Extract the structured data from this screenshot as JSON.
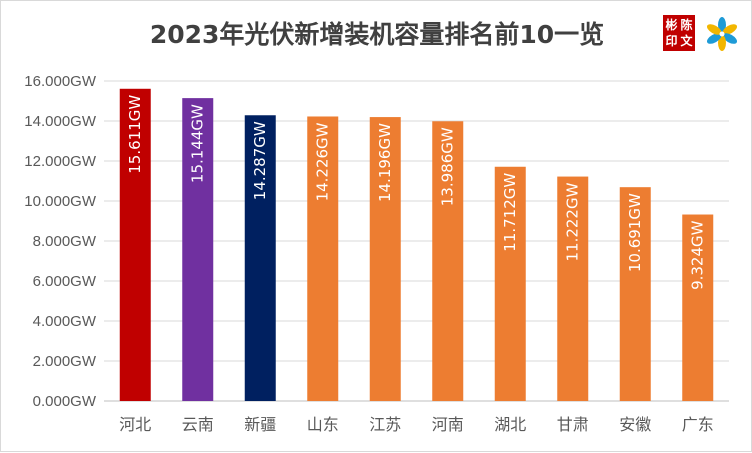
{
  "header": {
    "title": "2023年光伏新增装机容量排名前10一览",
    "seal_chars": [
      "彬",
      "陈",
      "印",
      "文"
    ],
    "logo_icon": "pinwheel-logo-icon"
  },
  "chart_data": {
    "type": "bar",
    "title": "2023年光伏新增装机容量排名前10一览",
    "xlabel": "",
    "ylabel": "",
    "unit": "GW",
    "categories": [
      "河北",
      "云南",
      "新疆",
      "山东",
      "江苏",
      "河南",
      "湖北",
      "甘肃",
      "安徽",
      "广东"
    ],
    "values": [
      15.611,
      15.144,
      14.287,
      14.226,
      14.196,
      13.986,
      11.712,
      11.222,
      10.691,
      9.324
    ],
    "data_labels": [
      "15.611GW",
      "15.144GW",
      "14.287GW",
      "14.226GW",
      "14.196GW",
      "13.986GW",
      "11.712GW",
      "11.222GW",
      "10.691GW",
      "9.324GW"
    ],
    "bar_colors": [
      "#c00000",
      "#7030a0",
      "#002060",
      "#ed7d31",
      "#ed7d31",
      "#ed7d31",
      "#ed7d31",
      "#ed7d31",
      "#ed7d31",
      "#ed7d31"
    ],
    "ylim": [
      0,
      16
    ],
    "yticks": [
      0,
      2,
      4,
      6,
      8,
      10,
      12,
      14,
      16
    ],
    "ytick_labels": [
      "0.000GW",
      "2.000GW",
      "4.000GW",
      "6.000GW",
      "8.000GW",
      "10.000GW",
      "12.000GW",
      "14.000GW",
      "16.000GW"
    ],
    "grid": true,
    "legend": "none"
  }
}
